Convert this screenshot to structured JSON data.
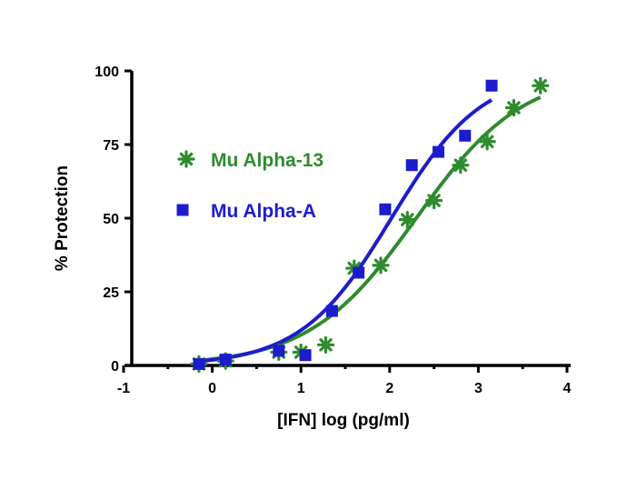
{
  "chart_data": {
    "type": "scatter",
    "title": "",
    "xlabel": "[IFN] log (pg/ml)",
    "ylabel": "% Protection",
    "xlim": [
      -1,
      4
    ],
    "ylim": [
      0,
      100
    ],
    "xticks": [
      "-1",
      "0",
      "1",
      "2",
      "3",
      "4"
    ],
    "yticks": [
      "0",
      "25",
      "50",
      "75",
      "100"
    ],
    "legend_position": "upper-left",
    "grid": false,
    "series": [
      {
        "name": "Mu Alpha-13",
        "marker": "asterisk",
        "color": "#2e8b2e",
        "points": [
          {
            "x": -0.15,
            "y": 0.5
          },
          {
            "x": 0.15,
            "y": 1.5
          },
          {
            "x": 0.75,
            "y": 4.5
          },
          {
            "x": 1.0,
            "y": 4.5
          },
          {
            "x": 1.28,
            "y": 7
          },
          {
            "x": 1.6,
            "y": 33
          },
          {
            "x": 1.9,
            "y": 34
          },
          {
            "x": 2.2,
            "y": 49.5
          },
          {
            "x": 2.5,
            "y": 56
          },
          {
            "x": 2.8,
            "y": 68
          },
          {
            "x": 3.1,
            "y": 76
          },
          {
            "x": 3.4,
            "y": 87.5
          },
          {
            "x": 3.7,
            "y": 95
          }
        ],
        "fit": {
          "model": "sigmoid",
          "bottom": 0,
          "top": 100,
          "logEC50": 2.3,
          "hill": 0.72
        }
      },
      {
        "name": "Mu Alpha-A",
        "marker": "square",
        "color": "#1c1ccc",
        "points": [
          {
            "x": -0.15,
            "y": 0.5
          },
          {
            "x": 0.15,
            "y": 2
          },
          {
            "x": 0.75,
            "y": 5
          },
          {
            "x": 1.05,
            "y": 3.5
          },
          {
            "x": 1.35,
            "y": 18.5
          },
          {
            "x": 1.65,
            "y": 31.5
          },
          {
            "x": 1.95,
            "y": 53
          },
          {
            "x": 2.25,
            "y": 68
          },
          {
            "x": 2.55,
            "y": 72.5
          },
          {
            "x": 2.85,
            "y": 78
          },
          {
            "x": 3.15,
            "y": 95
          }
        ],
        "fit": {
          "model": "sigmoid",
          "bottom": 0,
          "top": 100,
          "logEC50": 2.02,
          "hill": 0.85
        }
      }
    ]
  }
}
